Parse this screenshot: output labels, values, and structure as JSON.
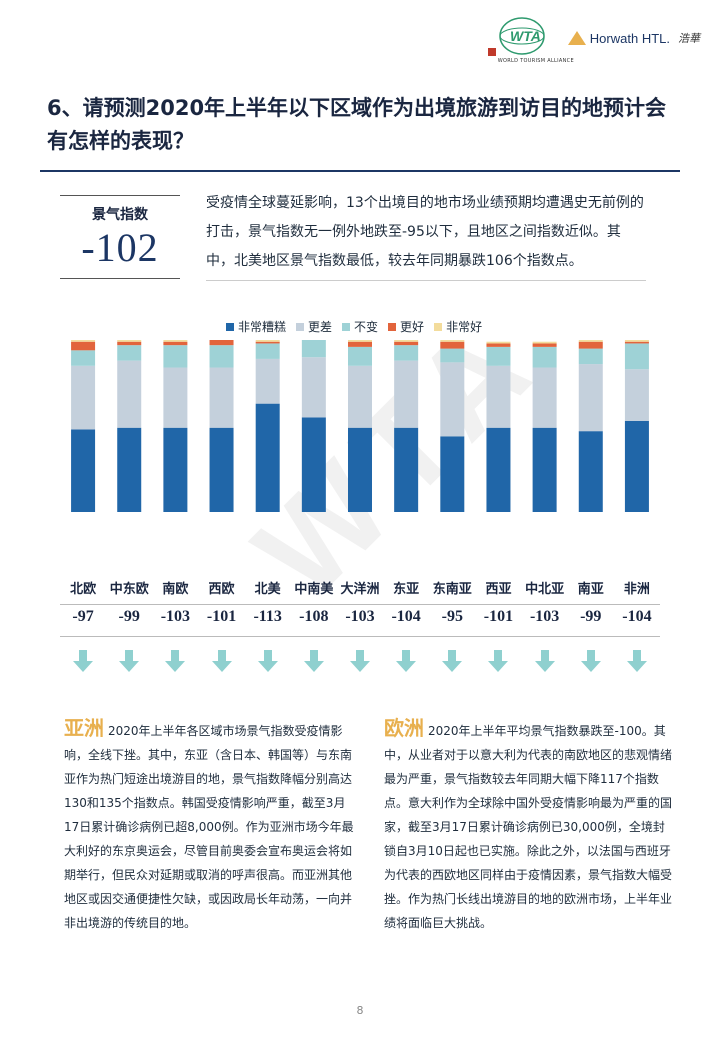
{
  "header": {
    "wta_caption": "WORLD TOURISM ALLIANCE",
    "wta_mark": "WTA",
    "horwath_name": "Horwath HTL.",
    "horwath_cn": "浩華"
  },
  "title": "6、请预测2020年上半年以下区域作为出境旅游到访目的地预计会有怎样的表现？",
  "index": {
    "label": "景气指数",
    "value": "-102"
  },
  "intro": "受疫情全球蔓延影响，13个出境目的地市场业绩预期均遭遇史无前例的打击，景气指数无一例外地跌至-95以下，且地区之间指数近似。其中，北美地区景气指数最低，较去年同期暴跌106个指数点。",
  "chart_data": {
    "type": "bar",
    "stacked": true,
    "categories": [
      "北欧",
      "中东欧",
      "南欧",
      "西欧",
      "北美",
      "中南美",
      "大洋洲",
      "东亚",
      "东南亚",
      "西亚",
      "中北亚",
      "南亚",
      "非洲"
    ],
    "ylim": [
      0,
      100
    ],
    "series": [
      {
        "name": "非常糟糕",
        "color": "#2066a8",
        "values": [
          48,
          49,
          49,
          49,
          63,
          55,
          49,
          49,
          44,
          49,
          49,
          47,
          53
        ]
      },
      {
        "name": "更差",
        "color": "#c4d0dc",
        "values": [
          37,
          39,
          35,
          35,
          26,
          35,
          36,
          39,
          43,
          36,
          35,
          39,
          30
        ]
      },
      {
        "name": "不变",
        "color": "#9ed2d6",
        "values": [
          9,
          9,
          13,
          13,
          9,
          10,
          11,
          9,
          8,
          11,
          12,
          9,
          15
        ]
      },
      {
        "name": "更好",
        "color": "#e2643c",
        "values": [
          5,
          2,
          2,
          3,
          1,
          0,
          3,
          2,
          4,
          2,
          2,
          4,
          1
        ]
      },
      {
        "name": "非常好",
        "color": "#f3dc9c",
        "values": [
          1,
          1,
          1,
          0,
          1,
          0,
          1,
          1,
          1,
          1,
          1,
          1,
          1
        ]
      }
    ],
    "index_values": [
      "-97",
      "-99",
      "-103",
      "-101",
      "-113",
      "-108",
      "-103",
      "-104",
      "-95",
      "-101",
      "-103",
      "-99",
      "-104"
    ]
  },
  "asia": {
    "head": "亚洲",
    "text": "2020年上半年各区域市场景气指数受疫情影响，全线下挫。其中，东亚（含日本、韩国等）与东南亚作为热门短途出境游目的地，景气指数降幅分别高达130和135个指数点。韩国受疫情影响严重，截至3月17日累计确诊病例已超8,000例。作为亚洲市场今年最大利好的东京奥运会，尽管目前奥委会宣布奥运会将如期举行，但民众对延期或取消的呼声很高。而亚洲其他地区或因交通便捷性欠缺，或因政局长年动荡，一向并非出境游的传统目的地。"
  },
  "europe": {
    "head": "欧洲",
    "text": "2020年上半年平均景气指数暴跌至-100。其中，从业者对于以意大利为代表的南欧地区的悲观情绪最为严重，景气指数较去年同期大幅下降117个指数点。意大利作为全球除中国外受疫情影响最为严重的国家，截至3月17日累计确诊病例已30,000例，全境封锁自3月10日起也已实施。除此之外，以法国与西班牙为代表的西欧地区同样由于疫情因素，景气指数大幅受挫。作为热门长线出境游目的地的欧洲市场，上半年业绩将面临巨大挑战。"
  },
  "watermark": "WTA",
  "page_number": "8"
}
